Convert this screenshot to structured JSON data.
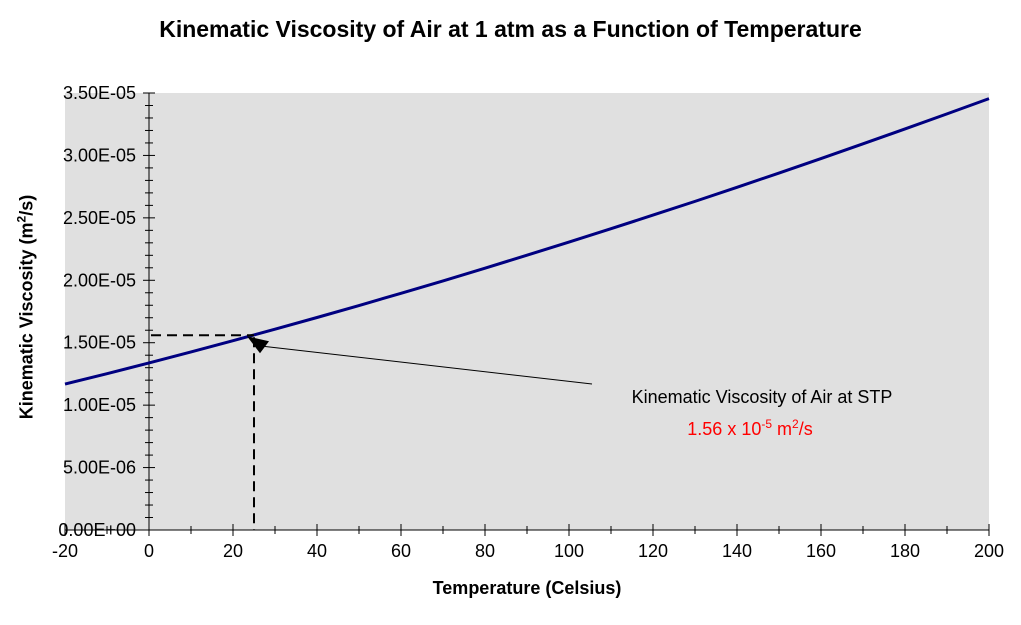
{
  "chart_data": {
    "type": "line",
    "title": "Kinematic Viscosity of Air at 1 atm as a Function of Temperature",
    "xlabel": "Temperature (Celsius)",
    "ylabel": "Kinematic Viscosity (m^2/s)",
    "ylabel_parts": {
      "base": "Kinematic Viscosity (m",
      "sup": "2",
      "rest": "/s)"
    },
    "x": [
      -20,
      -10,
      0,
      10,
      20,
      25,
      30,
      40,
      50,
      60,
      70,
      80,
      90,
      100,
      110,
      120,
      130,
      140,
      150,
      160,
      170,
      180,
      190,
      200
    ],
    "y": [
      1.169e-05,
      1.252e-05,
      1.338e-05,
      1.426e-05,
      1.516e-05,
      1.562e-05,
      1.608e-05,
      1.702e-05,
      1.798e-05,
      1.896e-05,
      1.995e-05,
      2.097e-05,
      2.201e-05,
      2.306e-05,
      2.413e-05,
      2.522e-05,
      2.632e-05,
      2.745e-05,
      2.859e-05,
      2.975e-05,
      3.093e-05,
      3.212e-05,
      3.333e-05,
      3.455e-05
    ],
    "xlim": [
      -20,
      200
    ],
    "ylim": [
      0,
      3.5e-05
    ],
    "grid": false,
    "legend": false,
    "x_ticks": {
      "minor_step": 10,
      "labels": [
        {
          "value": -20,
          "label": "-20"
        },
        {
          "value": 0,
          "label": "0"
        },
        {
          "value": 20,
          "label": "20"
        },
        {
          "value": 40,
          "label": "40"
        },
        {
          "value": 60,
          "label": "60"
        },
        {
          "value": 80,
          "label": "80"
        },
        {
          "value": 100,
          "label": "100"
        },
        {
          "value": 120,
          "label": "120"
        },
        {
          "value": 140,
          "label": "140"
        },
        {
          "value": 160,
          "label": "160"
        },
        {
          "value": 180,
          "label": "180"
        },
        {
          "value": 200,
          "label": "200"
        }
      ]
    },
    "y_ticks": {
      "minor_step": 1e-06,
      "labels": [
        {
          "value": 0,
          "label": "0.00E+00"
        },
        {
          "value": 5e-06,
          "label": "5.00E-06"
        },
        {
          "value": 1e-05,
          "label": "1.00E-05"
        },
        {
          "value": 1.5e-05,
          "label": "1.50E-05"
        },
        {
          "value": 2e-05,
          "label": "2.00E-05"
        },
        {
          "value": 2.5e-05,
          "label": "2.50E-05"
        },
        {
          "value": 3e-05,
          "label": "3.00E-05"
        },
        {
          "value": 3.5e-05,
          "label": "3.50E-05"
        }
      ]
    },
    "colors": {
      "line": "#000080",
      "plot_bg": "#E0E0E0",
      "axis": "#000000",
      "annotation_value": "#FF0000"
    },
    "annotation": {
      "line1": "Kinematic Viscosity of Air at STP",
      "value_text": "1.56 x 10^-5 m^2/s",
      "value_parts": {
        "base": "1.56 x 10",
        "exp": "-5",
        "unit_base": " m",
        "unit_exp": "2",
        "unit_rest": "/s"
      },
      "point": {
        "x": 25,
        "y": 1.56e-05
      }
    }
  }
}
